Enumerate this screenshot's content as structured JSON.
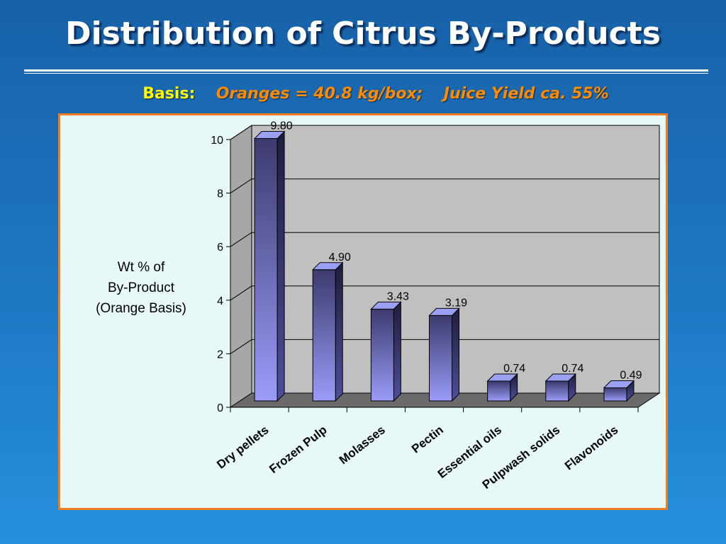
{
  "title": "Distribution of Citrus By-Products",
  "subtitle": {
    "basis_label": "Basis:",
    "oranges_text": "Oranges = 40.8 kg/box;",
    "juice_text": "Juice Yield ca. 55%"
  },
  "colors": {
    "background": "#1e78c4",
    "title_text": "#ffffff",
    "basis_label": "#ffff00",
    "subtitle_orange": "#ff8c00",
    "panel_border": "#f07d1e",
    "panel_background": "#e6f8f8",
    "plot_wall": "#c0c0c0",
    "bar_top": "#9aa0f2",
    "bar_dark": "#3c3a6e",
    "bar_light": "#9a9cf8"
  },
  "chart_data": {
    "type": "bar",
    "categories": [
      "Dry pellets",
      "Frozen Pulp",
      "Molasses",
      "Pectin",
      "Essential oils",
      "Pulpwash solids",
      "Flavonoids"
    ],
    "values": [
      9.8,
      4.9,
      3.43,
      3.19,
      0.74,
      0.74,
      0.49
    ],
    "value_labels": [
      "9.80",
      "4.90",
      "3.43",
      "3.19",
      "0.74",
      "0.74",
      "0.49"
    ],
    "ylabel_lines": [
      "Wt % of",
      "By-Product",
      "(Orange Basis)"
    ],
    "xlabel": "",
    "ylim": [
      0,
      10
    ],
    "yticks": [
      0,
      2,
      4,
      6,
      8,
      10
    ],
    "grid": true,
    "style": "3d-column"
  }
}
